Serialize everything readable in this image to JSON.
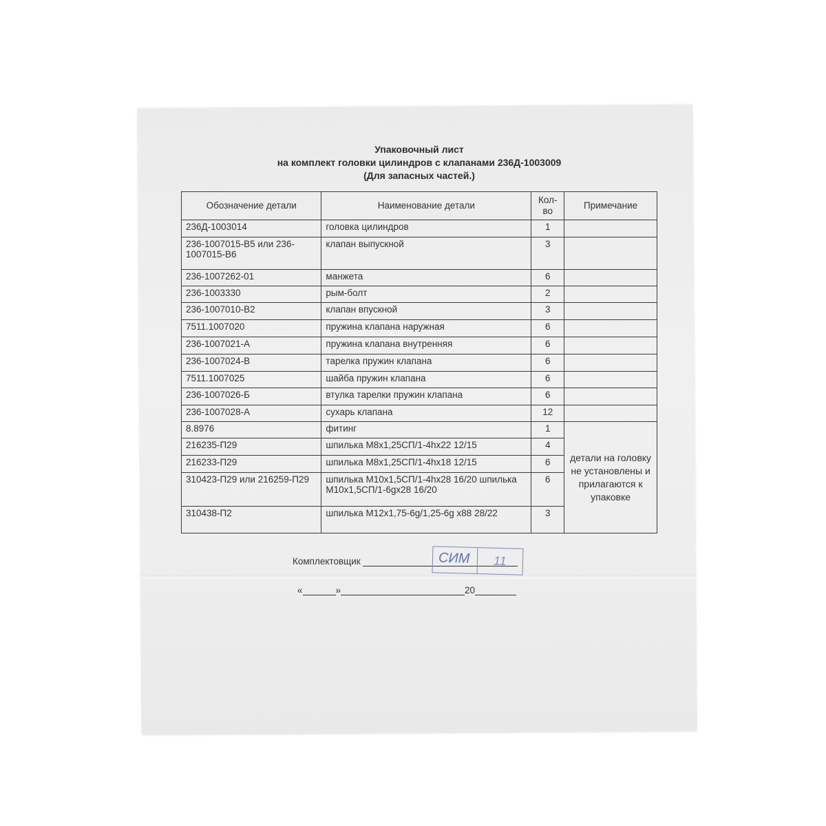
{
  "title": {
    "line1": "Упаковочный лист",
    "line2": "на комплект головки цилиндров с клапанами 236Д-1003009",
    "line3": "(Для запасных частей.)"
  },
  "table": {
    "headers": {
      "designation": "Обозначение детали",
      "name": "Наименование детали",
      "qty": "Кол-во",
      "note": "Примечание"
    },
    "rows": [
      {
        "designation": "236Д-1003014",
        "name": "головка цилиндров",
        "qty": "1"
      },
      {
        "designation": "236-1007015-В5 или 236-1007015-В6",
        "name": "клапан выпускной",
        "qty": "3"
      },
      {
        "designation": "236-1007262-01",
        "name": "манжета",
        "qty": "6"
      },
      {
        "designation": "236-1003330",
        "name": "рым-болт",
        "qty": "2"
      },
      {
        "designation": "236-1007010-В2",
        "name": "клапан впускной",
        "qty": "3"
      },
      {
        "designation": "7511.1007020",
        "name": "пружина клапана наружная",
        "qty": "6"
      },
      {
        "designation": "236-1007021-А",
        "name": "пружина клапана внутренняя",
        "qty": "6"
      },
      {
        "designation": "236-1007024-В",
        "name": "тарелка пружин клапана",
        "qty": "6"
      },
      {
        "designation": "7511.1007025",
        "name": "шайба пружин клапана",
        "qty": "6"
      },
      {
        "designation": "236-1007026-Б",
        "name": "втулка тарелки пружин клапана",
        "qty": "6"
      },
      {
        "designation": "236-1007028-А",
        "name": "сухарь клапана",
        "qty": "12"
      },
      {
        "designation": "8.8976",
        "name": "фитинг",
        "qty": "1"
      },
      {
        "designation": "216235-П29",
        "name": "шпилька М8х1,25СП/1-4hх22 12/15",
        "qty": "4"
      },
      {
        "designation": "216233-П29",
        "name": "шпилька М8х1,25СП/1-4hх18 12/15",
        "qty": "6"
      },
      {
        "designation": "310423-П29 или 216259-П29",
        "name": "шпилька М10х1,5СП/1-4hх28 16/20 шпилька М10х1,5СП/1-6gх28 16/20",
        "qty": "6"
      },
      {
        "designation": "310438-П2",
        "name": "шпилька М12х1,75-6g/1,25-6g х88 28/22",
        "qty": "3"
      }
    ],
    "merged_note": "детали на головку не установлены и прилагаются к упаковке"
  },
  "footer": {
    "packer_label": "Комплектовщик",
    "stamp_text": "СИМ",
    "stamp_number": "11",
    "date_open_quote": "«",
    "date_close_quote": "»",
    "date_year_prefix": "20"
  },
  "colors": {
    "stamp": "#5f73b8",
    "paper": "#ececec",
    "ink": "#333333"
  }
}
